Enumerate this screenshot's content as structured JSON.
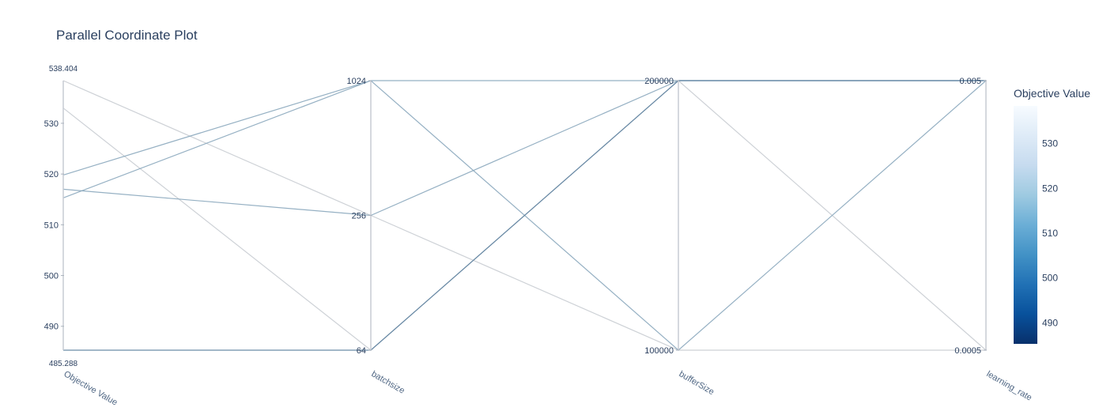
{
  "chart_data": {
    "type": "parallel_coordinates",
    "title": "Parallel Coordinate Plot",
    "dimensions": [
      {
        "label": "Objective Value",
        "range": [
          485.288,
          538.404
        ],
        "min_label": "485.288",
        "max_label": "538.404",
        "ticks": [
          490,
          500,
          510,
          520,
          530
        ]
      },
      {
        "label": "batchsize",
        "log": true,
        "range": [
          64,
          1024
        ],
        "ticks": [
          64,
          256,
          1024
        ]
      },
      {
        "label": "bufferSize",
        "range": [
          100000,
          200000
        ],
        "ticks": [
          100000,
          200000
        ]
      },
      {
        "label": "learning_rate",
        "log": true,
        "range": [
          0.0005,
          0.005
        ],
        "ticks": [
          0.0005,
          0.005
        ]
      }
    ],
    "trials": [
      {
        "values": [
          538.404,
          256,
          100000,
          0.0005
        ]
      },
      {
        "values": [
          533.0,
          64,
          200000,
          0.0005
        ]
      },
      {
        "values": [
          519.8,
          1024,
          100000,
          0.005
        ]
      },
      {
        "values": [
          517.0,
          256,
          200000,
          0.005
        ]
      },
      {
        "values": [
          515.3,
          1024,
          200000,
          0.005
        ]
      },
      {
        "values": [
          485.288,
          64,
          200000,
          0.005
        ]
      }
    ],
    "colorbar": {
      "title": "Objective Value",
      "ticks": [
        490,
        500,
        510,
        520,
        530
      ],
      "range": [
        485.288,
        538.404
      ],
      "colorscale": [
        "#08306b",
        "#08519c",
        "#2171b5",
        "#4292c6",
        "#6baed6",
        "#9ecae1",
        "#c6dbef",
        "#deebf7",
        "#f7fbff"
      ]
    },
    "grid": false
  }
}
